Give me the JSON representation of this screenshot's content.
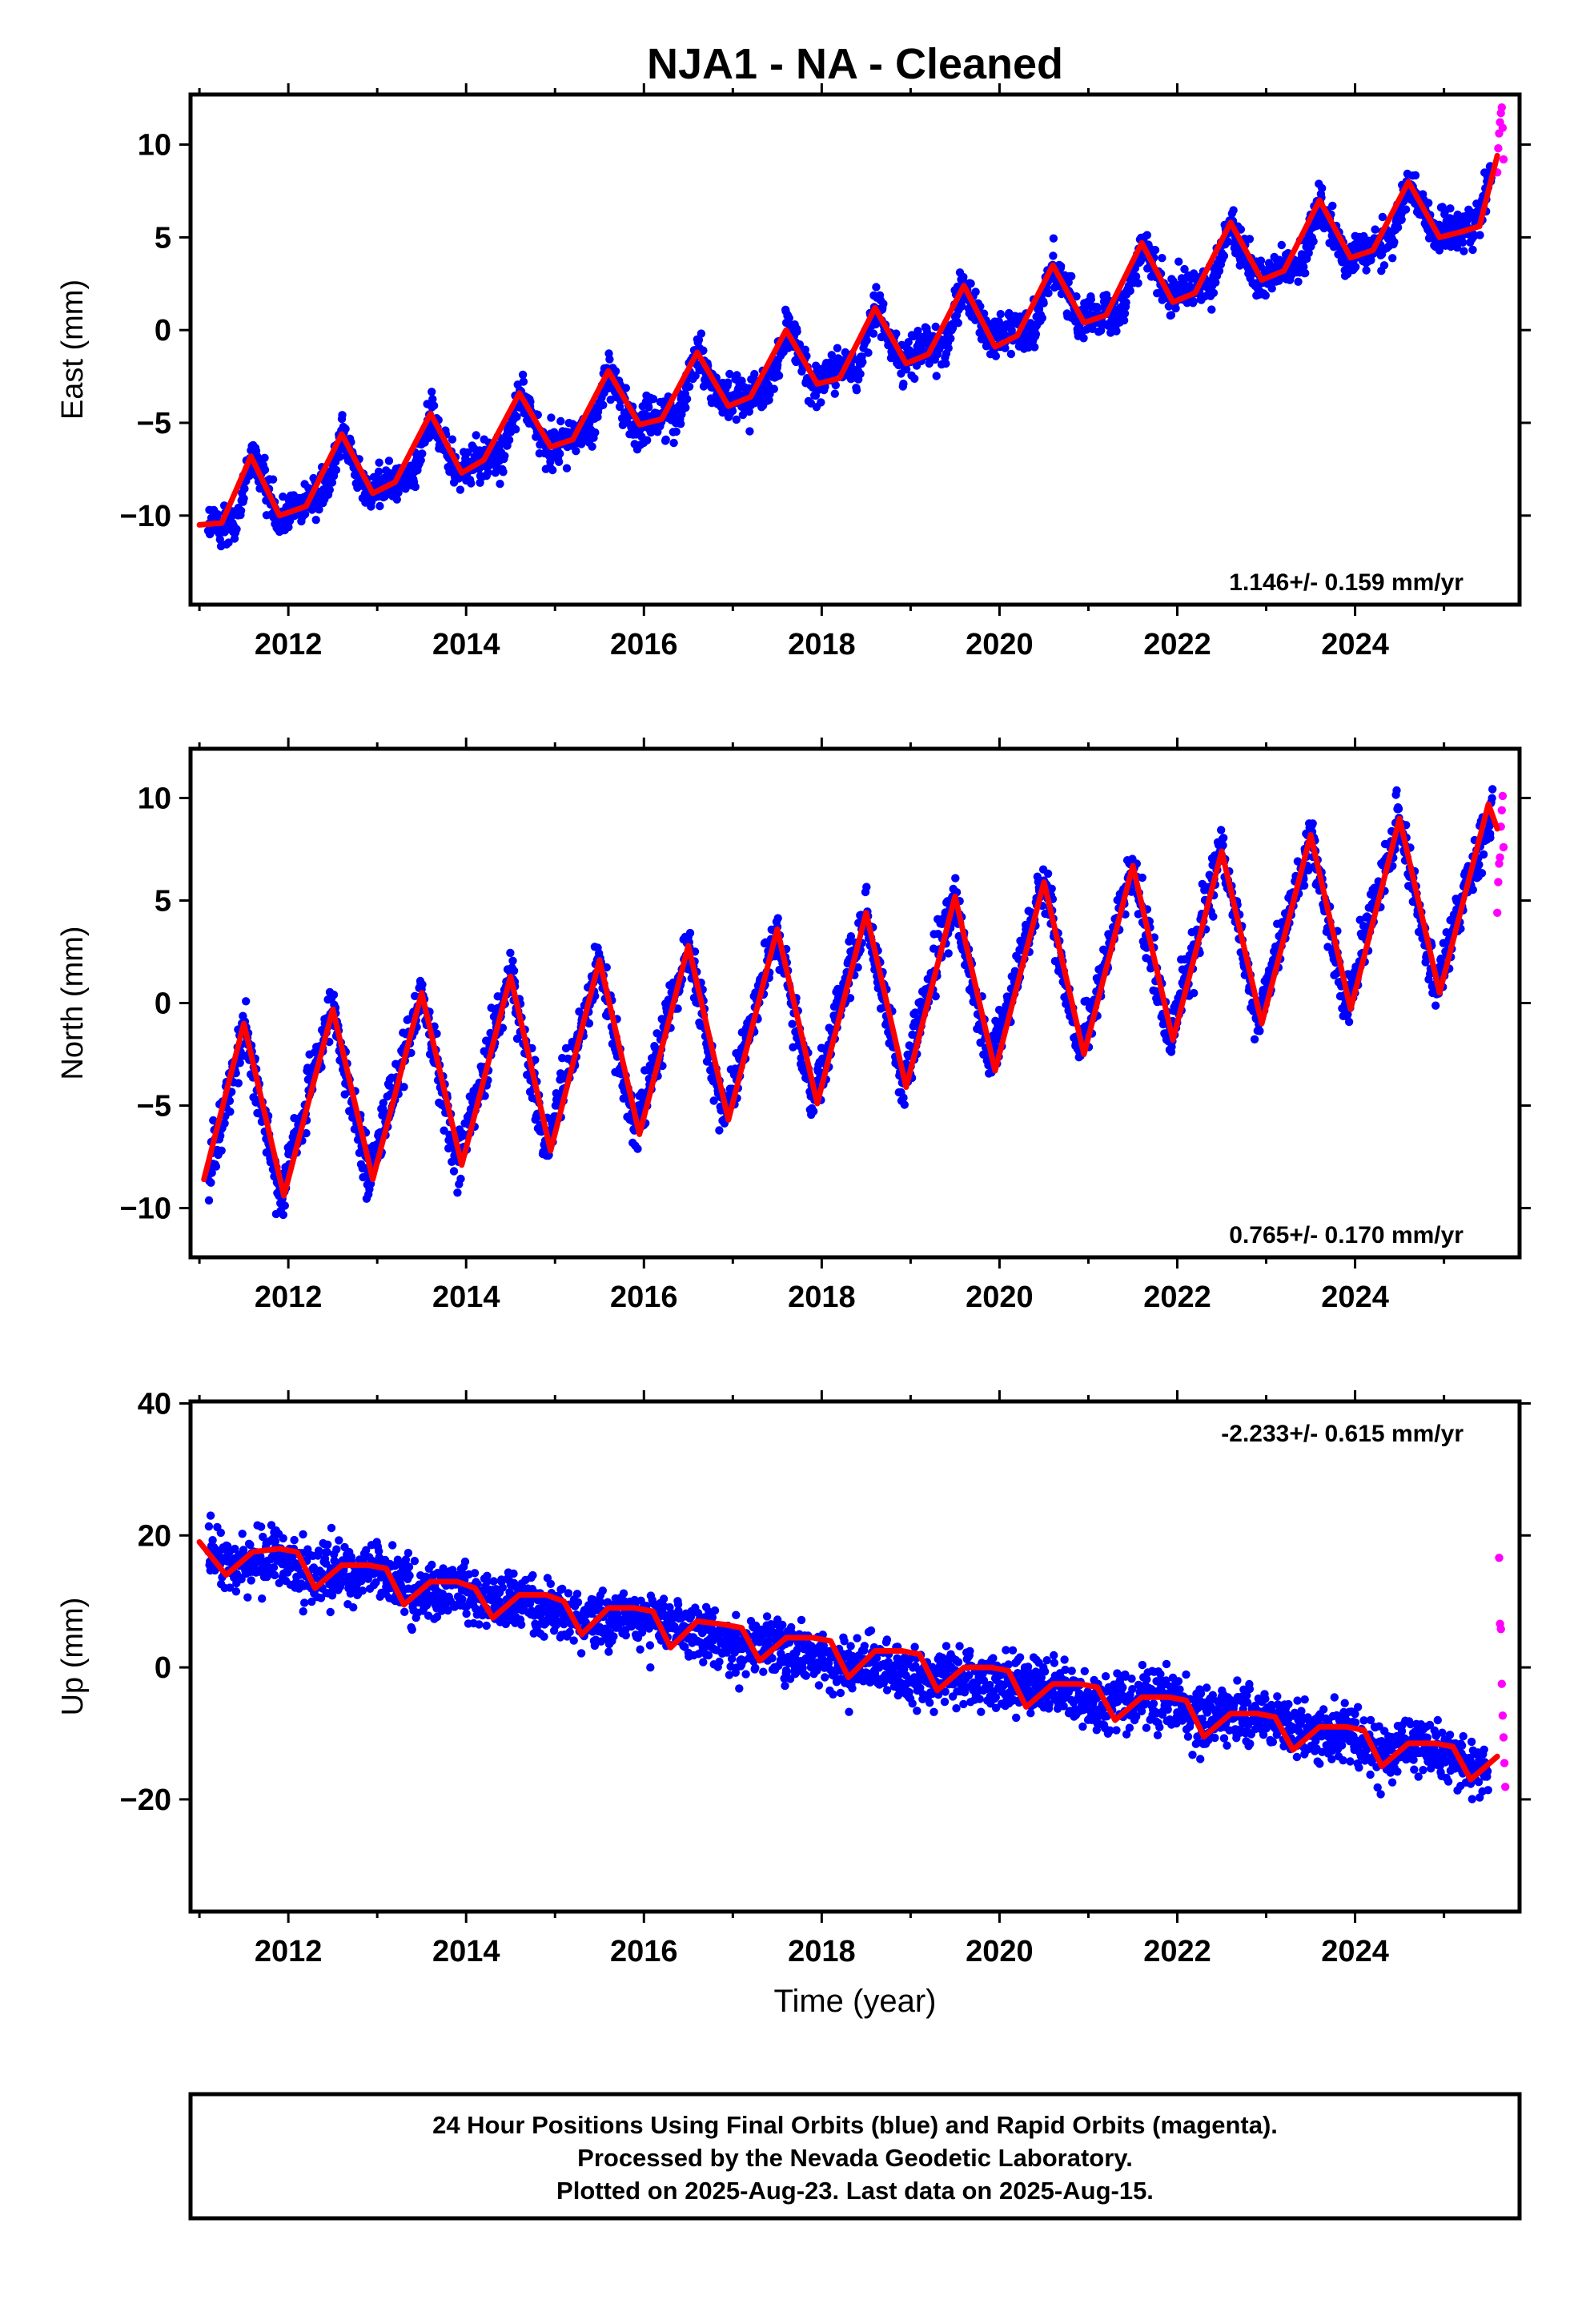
{
  "title": "NJA1  - NA - Cleaned",
  "colors": {
    "final": "#0000ff",
    "rapid": "#ff00ff",
    "model": "#ff0000",
    "frame": "#000000"
  },
  "chart_data": [
    {
      "type": "scatter",
      "ylabel": "East (mm)",
      "xlabel": "",
      "xlim": [
        2010.9,
        2025.85
      ],
      "ylim": [
        -14.8,
        12.7
      ],
      "yticks": [
        10,
        5,
        0,
        -5,
        -10
      ],
      "ytick_labels": [
        "10",
        "5",
        "0",
        "−5",
        "−10"
      ],
      "xticks": [
        2012,
        2014,
        2016,
        2018,
        2020,
        2022,
        2024
      ],
      "xtick_labels": [
        "2012",
        "2014",
        "2016",
        "2018",
        "2020",
        "2022",
        "2024"
      ],
      "rate_label": "1.146+/- 0.159 mm/yr",
      "rate_position": "bottom-right",
      "series": [
        {
          "name": "Final Orbits",
          "color": "blue",
          "x": [
            2011.1,
            2011.4,
            2011.6,
            2011.9,
            2012.1,
            2012.4,
            2012.6,
            2012.9,
            2013.1,
            2013.4,
            2013.6,
            2013.9,
            2014.1,
            2014.4,
            2014.6,
            2014.9,
            2015.1,
            2015.4,
            2015.6,
            2015.9,
            2016.1,
            2016.4,
            2016.6,
            2016.9,
            2017.1,
            2017.4,
            2017.6,
            2017.9,
            2018.1,
            2018.4,
            2018.6,
            2018.9,
            2019.1,
            2019.4,
            2019.6,
            2019.9,
            2020.1,
            2020.4,
            2020.6,
            2020.9,
            2021.1,
            2021.4,
            2021.6,
            2021.9,
            2022.1,
            2022.4,
            2022.6,
            2022.9,
            2023.1,
            2023.4,
            2023.6,
            2023.9,
            2024.1,
            2024.4,
            2024.6,
            2024.9,
            2025.1,
            2025.4,
            2025.55
          ],
          "y": [
            -10.6,
            -10.5,
            -6.8,
            -10.1,
            -9.4,
            -8.8,
            -5.6,
            -8.9,
            -8.2,
            -7.9,
            -4.5,
            -7.8,
            -7.1,
            -6.9,
            -3.4,
            -6.4,
            -5.9,
            -5.5,
            -2.2,
            -5.2,
            -4.7,
            -4.4,
            -1.1,
            -4.0,
            -3.6,
            -3.3,
            0.0,
            -2.9,
            -2.4,
            -2.0,
            1.2,
            -1.7,
            -1.1,
            -0.8,
            2.4,
            -0.6,
            0.0,
            0.3,
            3.5,
            0.6,
            0.9,
            1.2,
            4.7,
            1.6,
            2.1,
            2.4,
            5.8,
            2.7,
            3.2,
            3.6,
            7.0,
            3.8,
            4.2,
            4.8,
            8.0,
            5.0,
            5.5,
            6.0,
            8.8
          ],
          "spread": 1.4
        },
        {
          "name": "Rapid Orbits",
          "color": "magenta",
          "x": [
            2025.6,
            2025.61,
            2025.62,
            2025.63,
            2025.64,
            2025.65,
            2025.66,
            2025.67
          ],
          "y": [
            8.5,
            9.8,
            10.6,
            11.2,
            11.7,
            12.0,
            10.9,
            9.2
          ]
        },
        {
          "name": "Model fit",
          "color": "red",
          "trend": 1.146,
          "x": [
            2011.0,
            2011.25,
            2011.58,
            2011.9,
            2012.2,
            2012.6,
            2012.95,
            2013.2,
            2013.6,
            2013.95,
            2014.2,
            2014.6,
            2014.95,
            2015.2,
            2015.6,
            2015.95,
            2016.2,
            2016.6,
            2016.95,
            2017.2,
            2017.6,
            2017.95,
            2018.2,
            2018.6,
            2018.95,
            2019.2,
            2019.6,
            2019.95,
            2020.2,
            2020.6,
            2020.95,
            2021.2,
            2021.6,
            2021.95,
            2022.2,
            2022.6,
            2022.95,
            2023.2,
            2023.6,
            2023.95,
            2024.2,
            2024.6,
            2024.95,
            2025.2,
            2025.4,
            2025.6
          ],
          "y": [
            -10.5,
            -10.4,
            -6.8,
            -10.0,
            -9.5,
            -5.6,
            -8.8,
            -8.2,
            -4.5,
            -7.7,
            -7.0,
            -3.4,
            -6.3,
            -5.9,
            -2.2,
            -5.1,
            -4.8,
            -1.2,
            -4.1,
            -3.6,
            0.0,
            -2.9,
            -2.6,
            1.2,
            -1.8,
            -1.3,
            2.4,
            -0.9,
            -0.3,
            3.5,
            0.4,
            0.8,
            4.7,
            1.5,
            2.0,
            5.8,
            2.7,
            3.2,
            7.0,
            3.9,
            4.3,
            8.0,
            5.0,
            5.3,
            5.6,
            9.4
          ]
        }
      ]
    },
    {
      "type": "scatter",
      "ylabel": "North (mm)",
      "xlabel": "",
      "xlim": [
        2010.9,
        2025.85
      ],
      "ylim": [
        -12.4,
        12.4
      ],
      "yticks": [
        10,
        5,
        0,
        -5,
        -10
      ],
      "ytick_labels": [
        "10",
        "5",
        "0",
        "−5",
        "−10"
      ],
      "xticks": [
        2012,
        2014,
        2016,
        2018,
        2020,
        2022,
        2024
      ],
      "xtick_labels": [
        "2012",
        "2014",
        "2016",
        "2018",
        "2020",
        "2022",
        "2024"
      ],
      "rate_label": "0.765+/- 0.170 mm/yr",
      "rate_position": "bottom-right",
      "series": [
        {
          "name": "Final Orbits",
          "color": "blue",
          "x": [
            2011.1,
            2011.5,
            2011.9,
            2012.5,
            2012.9,
            2013.5,
            2013.9,
            2014.5,
            2014.9,
            2015.5,
            2015.9,
            2016.5,
            2016.9,
            2017.5,
            2017.9,
            2018.5,
            2018.9,
            2019.5,
            2019.9,
            2020.5,
            2020.9,
            2021.5,
            2021.9,
            2022.5,
            2022.9,
            2023.5,
            2023.9,
            2024.5,
            2024.9,
            2025.55
          ],
          "y": [
            -8.6,
            -1.0,
            -9.3,
            -0.3,
            -8.5,
            0.6,
            -7.9,
            1.4,
            -7.2,
            2.1,
            -6.4,
            2.8,
            -5.6,
            3.6,
            -4.8,
            4.4,
            -4.0,
            5.2,
            -3.2,
            6.0,
            -2.5,
            6.7,
            -1.7,
            7.4,
            -0.9,
            8.2,
            -0.2,
            9.0,
            0.6,
            9.6
          ],
          "spread": 1.6
        },
        {
          "name": "Rapid Orbits",
          "color": "magenta",
          "x": [
            2025.6,
            2025.61,
            2025.62,
            2025.63,
            2025.64,
            2025.65,
            2025.66,
            2025.67
          ],
          "y": [
            4.4,
            5.9,
            6.8,
            7.1,
            8.6,
            9.4,
            10.1,
            7.6
          ]
        },
        {
          "name": "Model fit",
          "color": "red",
          "trend": 0.765,
          "x": [
            2011.05,
            2011.5,
            2011.95,
            2012.5,
            2012.95,
            2013.5,
            2013.95,
            2014.5,
            2014.95,
            2015.5,
            2015.95,
            2016.5,
            2016.95,
            2017.5,
            2017.95,
            2018.5,
            2018.95,
            2019.5,
            2019.95,
            2020.5,
            2020.95,
            2021.5,
            2021.95,
            2022.5,
            2022.95,
            2023.5,
            2023.95,
            2024.5,
            2024.95,
            2025.5,
            2025.6
          ],
          "y": [
            -8.6,
            -1.0,
            -9.4,
            -0.3,
            -8.6,
            0.5,
            -7.9,
            1.3,
            -7.2,
            2.1,
            -6.4,
            2.8,
            -5.7,
            3.6,
            -4.9,
            4.4,
            -4.1,
            5.2,
            -3.3,
            5.9,
            -2.5,
            6.7,
            -1.8,
            7.4,
            -1.0,
            8.2,
            -0.3,
            9.0,
            0.5,
            9.7,
            8.5
          ]
        }
      ]
    },
    {
      "type": "scatter",
      "ylabel": "Up (mm)",
      "xlabel": "Time (year)",
      "xlim": [
        2010.9,
        2025.85
      ],
      "ylim": [
        -37,
        40.3
      ],
      "yticks": [
        40,
        20,
        0,
        -20
      ],
      "ytick_labels": [
        "40",
        "20",
        "0",
        "−20"
      ],
      "xticks": [
        2012,
        2014,
        2016,
        2018,
        2020,
        2022,
        2024
      ],
      "xtick_labels": [
        "2012",
        "2014",
        "2016",
        "2018",
        "2020",
        "2022",
        "2024"
      ],
      "rate_label": "-2.233+/- 0.615 mm/yr",
      "rate_position": "top-right",
      "series": [
        {
          "name": "Final Orbits",
          "color": "blue",
          "x": [
            2011.1,
            2011.5,
            2011.9,
            2012.3,
            2012.7,
            2013.1,
            2013.5,
            2013.9,
            2014.3,
            2014.7,
            2015.1,
            2015.5,
            2015.9,
            2016.3,
            2016.7,
            2017.1,
            2017.5,
            2017.9,
            2018.3,
            2018.7,
            2019.1,
            2019.5,
            2019.9,
            2020.3,
            2020.7,
            2021.1,
            2021.5,
            2021.9,
            2022.3,
            2022.7,
            2023.1,
            2023.5,
            2023.9,
            2024.3,
            2024.7,
            2025.1,
            2025.5
          ],
          "y": [
            18,
            15,
            17,
            14,
            15,
            14,
            11,
            12,
            10,
            10,
            8,
            7,
            8,
            6,
            5,
            3,
            3,
            1,
            0,
            0,
            -2,
            -1,
            -2,
            -3,
            -3,
            -6,
            -5,
            -5,
            -8,
            -7,
            -8,
            -10,
            -10,
            -13,
            -12,
            -14,
            -16
          ],
          "spread": 5.5
        },
        {
          "name": "Rapid Orbits",
          "color": "magenta",
          "x": [
            2025.62,
            2025.63,
            2025.64,
            2025.65,
            2025.66,
            2025.67,
            2025.68,
            2025.69
          ],
          "y": [
            16.6,
            6.6,
            5.8,
            -2.5,
            -7.3,
            -10.6,
            -14.5,
            -18.1
          ]
        },
        {
          "name": "Model fit",
          "color": "red",
          "trend": -2.233,
          "x": [
            2011.0,
            2011.3,
            2011.6,
            2011.9,
            2012.1,
            2012.3,
            2012.6,
            2012.9,
            2013.1,
            2013.3,
            2013.6,
            2013.9,
            2014.1,
            2014.3,
            2014.6,
            2014.9,
            2015.1,
            2015.3,
            2015.6,
            2015.9,
            2016.1,
            2016.3,
            2016.6,
            2016.9,
            2017.1,
            2017.3,
            2017.6,
            2017.9,
            2018.1,
            2018.3,
            2018.6,
            2018.9,
            2019.1,
            2019.3,
            2019.6,
            2019.9,
            2020.1,
            2020.3,
            2020.6,
            2020.9,
            2021.1,
            2021.3,
            2021.6,
            2021.9,
            2022.1,
            2022.3,
            2022.6,
            2022.9,
            2023.1,
            2023.3,
            2023.6,
            2023.9,
            2024.1,
            2024.3,
            2024.6,
            2024.9,
            2025.1,
            2025.3,
            2025.6
          ],
          "y": [
            19,
            14,
            17.5,
            18,
            17.5,
            12,
            15.5,
            15.5,
            15,
            9.5,
            13,
            13,
            12,
            7.5,
            11,
            11,
            10,
            5,
            9,
            9,
            8.5,
            3,
            7,
            6.5,
            6,
            1,
            4.5,
            4.5,
            4,
            -1.5,
            2.5,
            2.5,
            2,
            -3.5,
            0,
            0,
            -0.5,
            -6,
            -2.5,
            -2.5,
            -3,
            -8,
            -4.5,
            -4.5,
            -5,
            -10.5,
            -7,
            -7,
            -7.5,
            -12.5,
            -9,
            -9,
            -9.5,
            -15,
            -11.5,
            -11.5,
            -12,
            -17,
            -13.5
          ]
        }
      ]
    }
  ],
  "footer": {
    "line1": "24 Hour Positions Using Final Orbits (blue) and Rapid Orbits (magenta).",
    "line2": "Processed by the Nevada Geodetic Laboratory.",
    "line3": "Plotted on 2025-Aug-23. Last data on 2025-Aug-15."
  }
}
